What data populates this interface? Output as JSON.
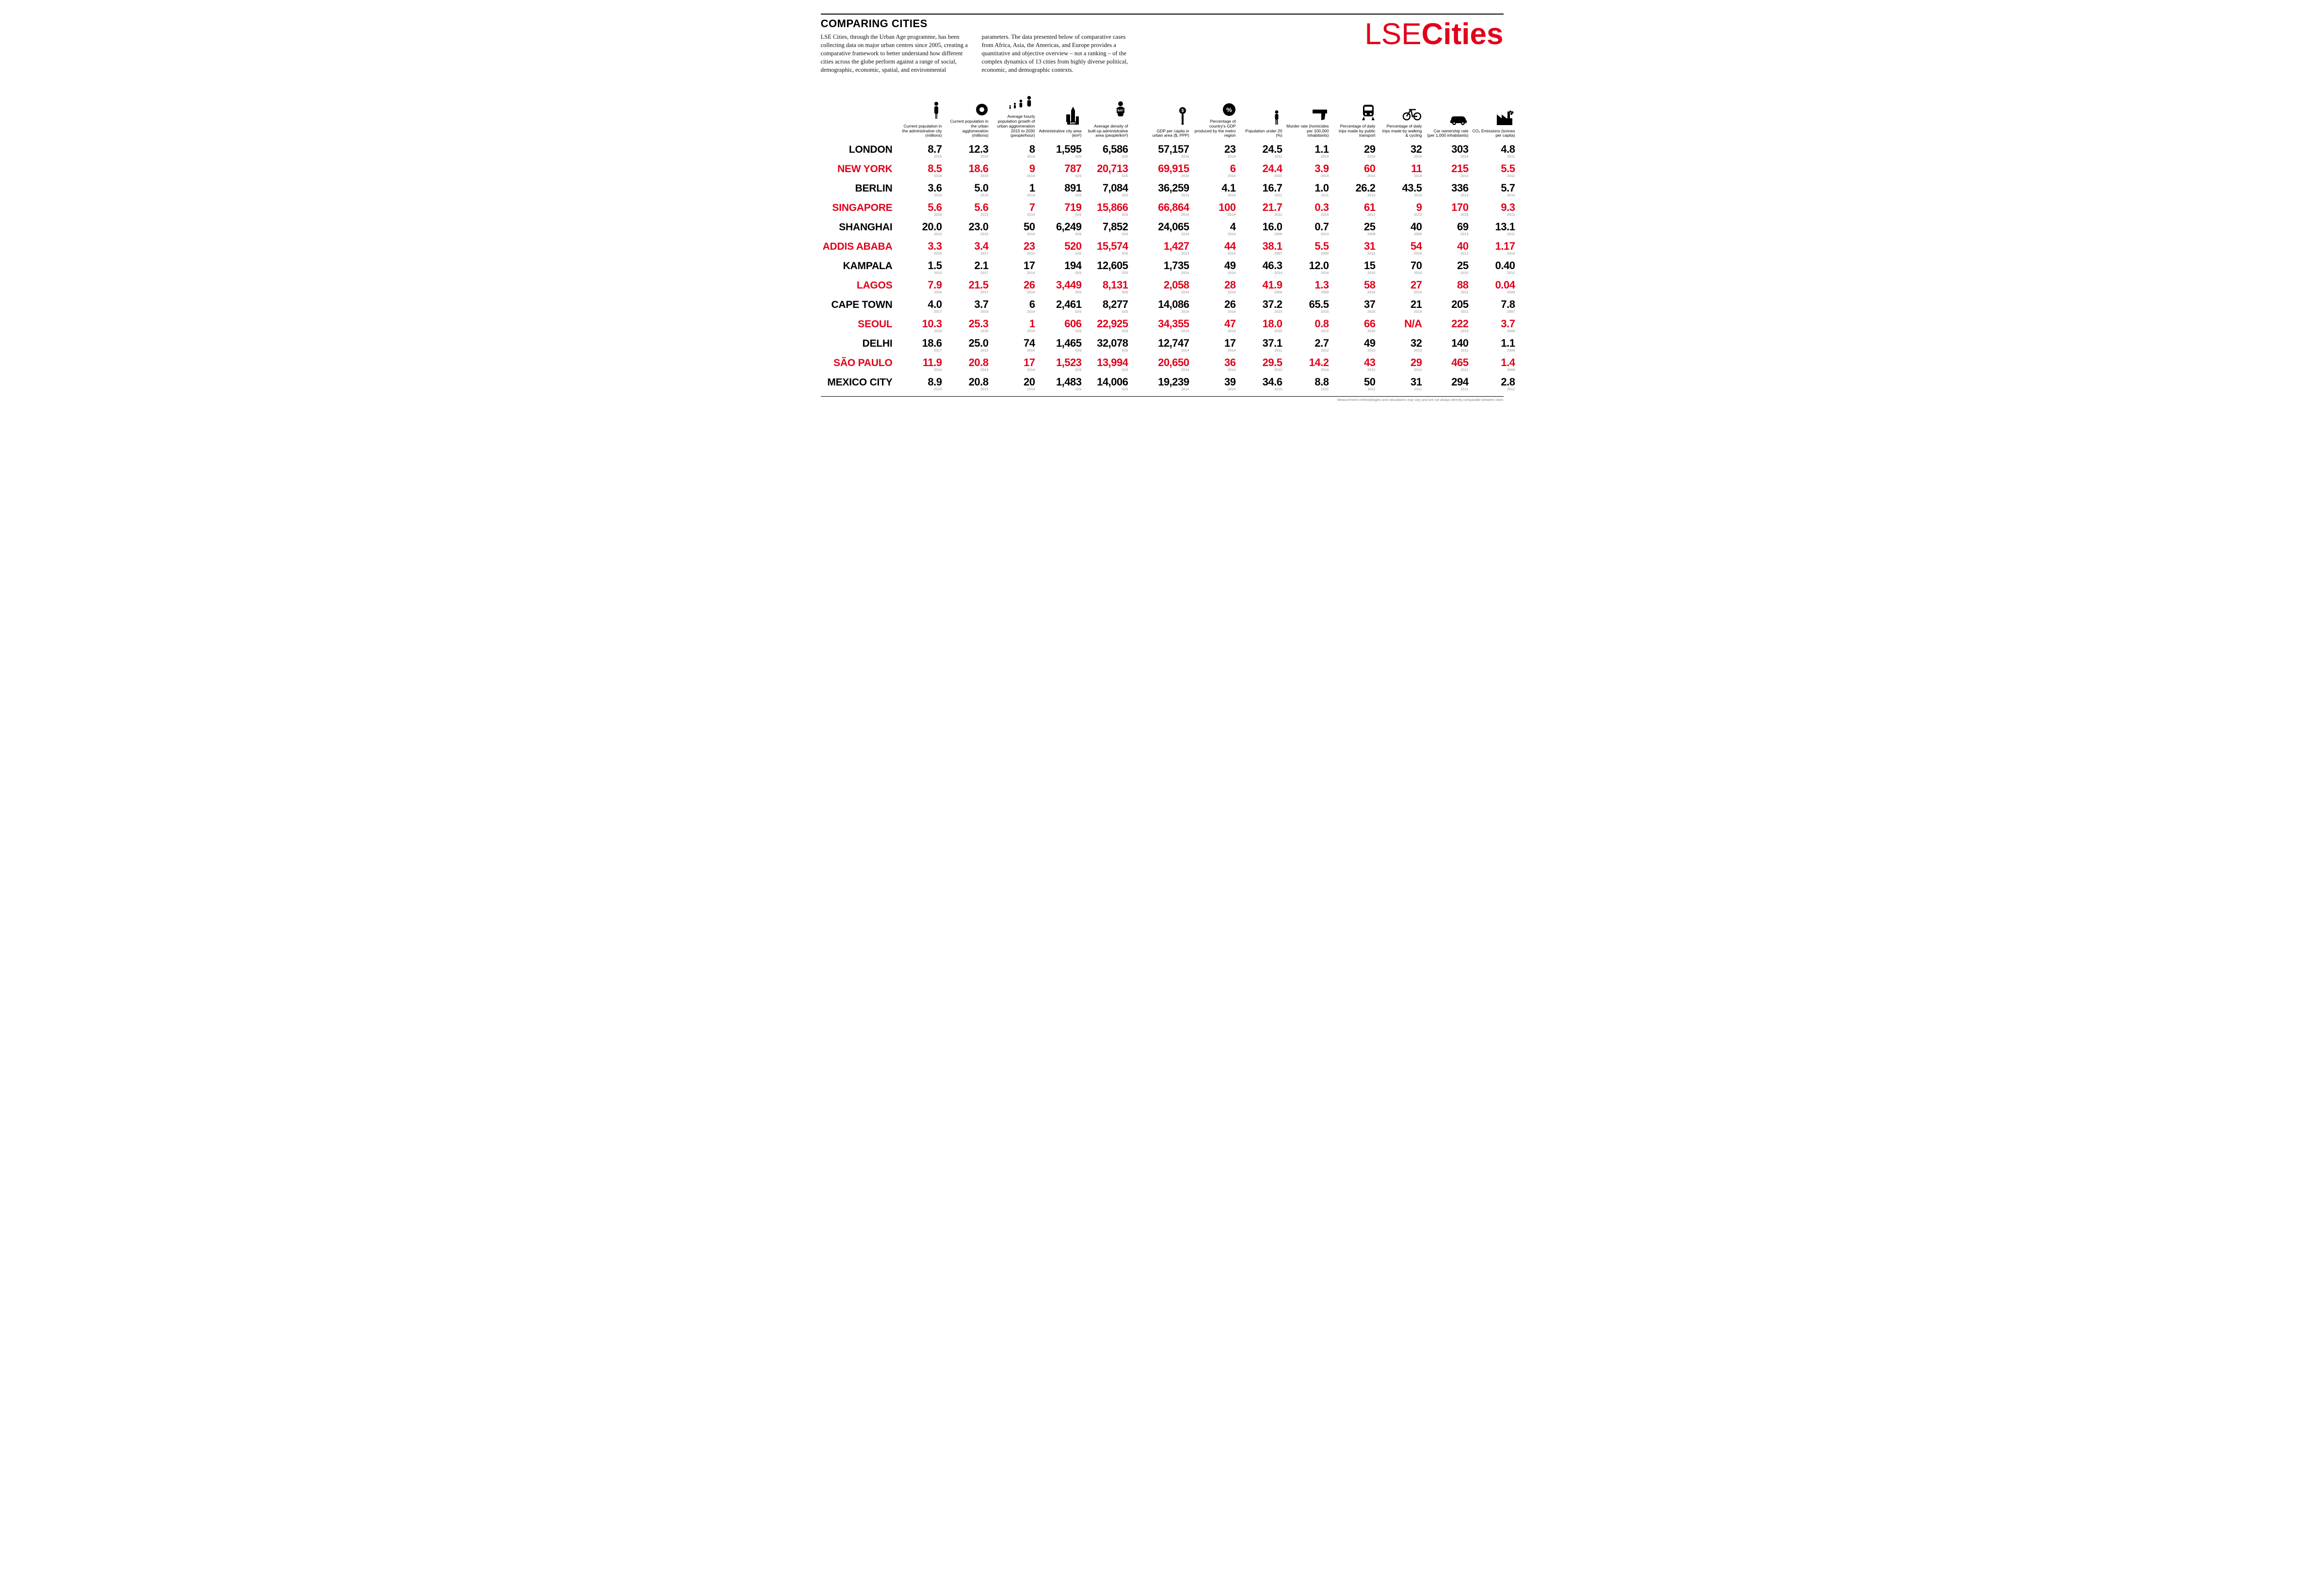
{
  "title": "COMPARING CITIES",
  "intro_col1": "LSE Cities, through the Urban Age programme, has been collecting data on major urban centres since 2005, creating a comparative framework to better understand how different cities across the globe perform against a range of social, demographic, economic, spatial, and environmental",
  "intro_col2": "parameters. The data presented below of comparative cases from Africa, Asia, the Americas, and Europe provides a quantitative and objective overview – not a ranking – of the complex dynamics of 13 cities from highly diverse political, economic, and demographic contexts.",
  "logo_light": "LSE",
  "logo_bold": "Cities",
  "footer_note": "Measurement methodologies and calculations may vary and are not always directly comparable between cities",
  "colors": {
    "red": "#e2001a",
    "black": "#000000",
    "muted": "#888888",
    "bg": "#ffffff"
  },
  "columns": [
    {
      "key": "pop_admin",
      "label": "Current population in the administrative city (millions)",
      "icon": "person"
    },
    {
      "key": "pop_urban",
      "label": "Current population in the urban agglomeration (millions)",
      "icon": "donut"
    },
    {
      "key": "growth",
      "label": "Average hourly population growth of urban agglomeration 2015 to 2030 (people/hour)",
      "icon": "growth"
    },
    {
      "key": "area",
      "label": "Administrative city area (km²)",
      "icon": "city"
    },
    {
      "key": "density",
      "label": "Average density of built-up administrative area (people/km²)",
      "icon": "density"
    },
    {
      "key": "gdp",
      "label": "GDP per capita in urban area ($, PPP)",
      "icon": "dollar"
    },
    {
      "key": "gdp_pct",
      "label": "Percentage of country's GDP produced by the metro region",
      "icon": "percent"
    },
    {
      "key": "under20",
      "label": "Population under 20 (%)",
      "icon": "child"
    },
    {
      "key": "murder",
      "label": "Murder rate (homicides per 100,000 inhabitants)",
      "icon": "gun"
    },
    {
      "key": "transit",
      "label": "Percentage of daily trips made by public transport",
      "icon": "train"
    },
    {
      "key": "walkbike",
      "label": "Percentage of daily trips made by walking & cycling",
      "icon": "bike"
    },
    {
      "key": "car",
      "label": "Car ownership rate (per 1,000 inhabitants)",
      "icon": "car"
    },
    {
      "key": "co2",
      "label": "CO₂ Emissions (tonnes per capita)",
      "icon": "factory"
    }
  ],
  "rows": [
    {
      "city": "LONDON",
      "red": false,
      "cells": [
        {
          "v": "8.7",
          "y": "2016"
        },
        {
          "v": "12.3",
          "y": "2015"
        },
        {
          "v": "8",
          "y": "2014"
        },
        {
          "v": "1,595",
          "y": "GIS"
        },
        {
          "v": "6,586",
          "y": "GIS"
        },
        {
          "v": "57,157",
          "y": "2014"
        },
        {
          "v": "23",
          "y": "2014"
        },
        {
          "v": "24.5",
          "y": "2011"
        },
        {
          "v": "1.1",
          "y": "2014"
        },
        {
          "v": "29",
          "y": "2014"
        },
        {
          "v": "32",
          "y": "2014"
        },
        {
          "v": "303",
          "y": "2014"
        },
        {
          "v": "4.8",
          "y": "2011"
        }
      ]
    },
    {
      "city": "NEW YORK",
      "red": true,
      "cells": [
        {
          "v": "8.5",
          "y": "2016"
        },
        {
          "v": "18.6",
          "y": "2015"
        },
        {
          "v": "9",
          "y": "2014"
        },
        {
          "v": "787",
          "y": "GIS"
        },
        {
          "v": "20,713",
          "y": "GIS"
        },
        {
          "v": "69,915",
          "y": "2014"
        },
        {
          "v": "6",
          "y": "2014"
        },
        {
          "v": "24.4",
          "y": "2010"
        },
        {
          "v": "3.9",
          "y": "2014"
        },
        {
          "v": "60",
          "y": "2014"
        },
        {
          "v": "11",
          "y": "2014"
        },
        {
          "v": "215",
          "y": "2013"
        },
        {
          "v": "5.5",
          "y": "2011"
        }
      ]
    },
    {
      "city": "BERLIN",
      "red": false,
      "cells": [
        {
          "v": "3.6",
          "y": "2015"
        },
        {
          "v": "5.0",
          "y": "2015"
        },
        {
          "v": "1",
          "y": "2014"
        },
        {
          "v": "891",
          "y": "GIS"
        },
        {
          "v": "7,084",
          "y": "GIS"
        },
        {
          "v": "36,259",
          "y": "2014"
        },
        {
          "v": "4.1",
          "y": "2014"
        },
        {
          "v": "16.7",
          "y": "2011"
        },
        {
          "v": "1.0",
          "y": "2011"
        },
        {
          "v": "26.2",
          "y": "2013"
        },
        {
          "v": "43.5",
          "y": "2013"
        },
        {
          "v": "336",
          "y": "2013"
        },
        {
          "v": "5.7",
          "y": "2010"
        }
      ]
    },
    {
      "city": "SINGAPORE",
      "red": true,
      "cells": [
        {
          "v": "5.6",
          "y": "2016"
        },
        {
          "v": "5.6",
          "y": "2015"
        },
        {
          "v": "7",
          "y": "2014"
        },
        {
          "v": "719",
          "y": "GIS"
        },
        {
          "v": "15,866",
          "y": "GIS"
        },
        {
          "v": "66,864",
          "y": "2014"
        },
        {
          "v": "100",
          "y": "2014"
        },
        {
          "v": "21.7",
          "y": "2012"
        },
        {
          "v": "0.3",
          "y": "2014"
        },
        {
          "v": "61",
          "y": "2012"
        },
        {
          "v": "9",
          "y": "2012"
        },
        {
          "v": "170",
          "y": "2015"
        },
        {
          "v": "9.3",
          "y": "2013"
        }
      ]
    },
    {
      "city": "SHANGHAI",
      "red": false,
      "cells": [
        {
          "v": "20.0",
          "y": "2013"
        },
        {
          "v": "23.0",
          "y": "2015"
        },
        {
          "v": "50",
          "y": "2014"
        },
        {
          "v": "6,249",
          "y": "GIS"
        },
        {
          "v": "7,852",
          "y": "GIS"
        },
        {
          "v": "24,065",
          "y": "2014"
        },
        {
          "v": "4",
          "y": "2014"
        },
        {
          "v": "16.0",
          "y": "2005"
        },
        {
          "v": "0.7",
          "y": "2013"
        },
        {
          "v": "25",
          "y": "2009"
        },
        {
          "v": "40",
          "y": "2009"
        },
        {
          "v": "69",
          "y": "2013"
        },
        {
          "v": "13.1",
          "y": "2011"
        }
      ]
    },
    {
      "city": "ADDIS ABABA",
      "red": true,
      "cells": [
        {
          "v": "3.3",
          "y": "2016"
        },
        {
          "v": "3.4",
          "y": "2017"
        },
        {
          "v": "23",
          "y": "2014"
        },
        {
          "v": "520",
          "y": "GIS"
        },
        {
          "v": "15,574",
          "y": "GIS"
        },
        {
          "v": "1,427",
          "y": "2013"
        },
        {
          "v": "44",
          "y": "2014"
        },
        {
          "v": "38.1",
          "y": "2007"
        },
        {
          "v": "5.5",
          "y": "2000"
        },
        {
          "v": "31",
          "y": "2010"
        },
        {
          "v": "54",
          "y": "2010"
        },
        {
          "v": "40",
          "y": "2012"
        },
        {
          "v": "1.17",
          "y": "2010"
        }
      ]
    },
    {
      "city": "KAMPALA",
      "red": false,
      "cells": [
        {
          "v": "1.5",
          "y": "2015"
        },
        {
          "v": "2.1",
          "y": "2017"
        },
        {
          "v": "17",
          "y": "2014"
        },
        {
          "v": "194",
          "y": "GIS"
        },
        {
          "v": "12,605",
          "y": "GIS"
        },
        {
          "v": "1,735",
          "y": "2014"
        },
        {
          "v": "49",
          "y": "2014"
        },
        {
          "v": "46.3",
          "y": "2014"
        },
        {
          "v": "12.0",
          "y": "2014"
        },
        {
          "v": "15",
          "y": "2010"
        },
        {
          "v": "70",
          "y": "2010"
        },
        {
          "v": "25",
          "y": "2010"
        },
        {
          "v": "0.40",
          "y": "2012"
        }
      ]
    },
    {
      "city": "LAGOS",
      "red": true,
      "cells": [
        {
          "v": "7.9",
          "y": "2016"
        },
        {
          "v": "21.5",
          "y": "2017"
        },
        {
          "v": "26",
          "y": "2014"
        },
        {
          "v": "3,449",
          "y": "GIS"
        },
        {
          "v": "8,131",
          "y": "GIS"
        },
        {
          "v": "2,058",
          "y": "2014"
        },
        {
          "v": "28",
          "y": "2014"
        },
        {
          "v": "41.9",
          "y": "2006"
        },
        {
          "v": "1.3",
          "y": "2009"
        },
        {
          "v": "58",
          "y": "2014"
        },
        {
          "v": "27",
          "y": "2014"
        },
        {
          "v": "88",
          "y": "2011"
        },
        {
          "v": "0.04",
          "y": "2009"
        }
      ]
    },
    {
      "city": "CAPE TOWN",
      "red": false,
      "cells": [
        {
          "v": "4.0",
          "y": "2017"
        },
        {
          "v": "3.7",
          "y": "2015"
        },
        {
          "v": "6",
          "y": "2014"
        },
        {
          "v": "2,461",
          "y": "GIS"
        },
        {
          "v": "8,277",
          "y": "GIS"
        },
        {
          "v": "14,086",
          "y": "2014"
        },
        {
          "v": "26",
          "y": "2014"
        },
        {
          "v": "37.2",
          "y": "2015"
        },
        {
          "v": "65.5",
          "y": "2015"
        },
        {
          "v": "37",
          "y": "2015"
        },
        {
          "v": "21",
          "y": "2015"
        },
        {
          "v": "205",
          "y": "2011"
        },
        {
          "v": "7.8",
          "y": "2007"
        }
      ]
    },
    {
      "city": "SEOUL",
      "red": true,
      "cells": [
        {
          "v": "10.3",
          "y": "2016"
        },
        {
          "v": "25.3",
          "y": "2015"
        },
        {
          "v": "1",
          "y": "2014"
        },
        {
          "v": "606",
          "y": "GIS"
        },
        {
          "v": "22,925",
          "y": "GIS"
        },
        {
          "v": "34,355",
          "y": "2014"
        },
        {
          "v": "47",
          "y": "2014"
        },
        {
          "v": "18.0",
          "y": "2015"
        },
        {
          "v": "0.8",
          "y": "2012"
        },
        {
          "v": "66",
          "y": "2016"
        },
        {
          "v": "N/A",
          "y": ""
        },
        {
          "v": "222",
          "y": "2013"
        },
        {
          "v": "3.7",
          "y": "2008"
        }
      ]
    },
    {
      "city": "DELHI",
      "red": false,
      "cells": [
        {
          "v": "18.6",
          "y": "2017"
        },
        {
          "v": "25.0",
          "y": "2015"
        },
        {
          "v": "74",
          "y": "2014"
        },
        {
          "v": "1,465",
          "y": "GIS"
        },
        {
          "v": "32,078",
          "y": "GIS"
        },
        {
          "v": "12,747",
          "y": "2014"
        },
        {
          "v": "17",
          "y": "2014"
        },
        {
          "v": "37.1",
          "y": "2011"
        },
        {
          "v": "2.7",
          "y": "2012"
        },
        {
          "v": "49",
          "y": "2013"
        },
        {
          "v": "32",
          "y": "2013"
        },
        {
          "v": "140",
          "y": "2011"
        },
        {
          "v": "1.1",
          "y": "2008"
        }
      ]
    },
    {
      "city": "SÃO PAULO",
      "red": true,
      "cells": [
        {
          "v": "11.9",
          "y": "2014"
        },
        {
          "v": "20.8",
          "y": "2014"
        },
        {
          "v": "17",
          "y": "2014"
        },
        {
          "v": "1,523",
          "y": "GIS"
        },
        {
          "v": "13,994",
          "y": "GIS"
        },
        {
          "v": "20,650",
          "y": "2014"
        },
        {
          "v": "36",
          "y": "2014"
        },
        {
          "v": "29.5",
          "y": "2010"
        },
        {
          "v": "14.2",
          "y": "2014"
        },
        {
          "v": "43",
          "y": "2012"
        },
        {
          "v": "29",
          "y": "2012"
        },
        {
          "v": "465",
          "y": "2011"
        },
        {
          "v": "1.4",
          "y": "2009"
        }
      ]
    },
    {
      "city": "MEXICO CITY",
      "red": false,
      "cells": [
        {
          "v": "8.9",
          "y": "2010"
        },
        {
          "v": "20.8",
          "y": "2015"
        },
        {
          "v": "20",
          "y": "2014"
        },
        {
          "v": "1,483",
          "y": "GIS"
        },
        {
          "v": "14,006",
          "y": "GIS"
        },
        {
          "v": "19,239",
          "y": "2014"
        },
        {
          "v": "39",
          "y": "2014"
        },
        {
          "v": "34.6",
          "y": "2010"
        },
        {
          "v": "8.8",
          "y": "2011"
        },
        {
          "v": "50",
          "y": "2011"
        },
        {
          "v": "31",
          "y": "2011"
        },
        {
          "v": "294",
          "y": "2011"
        },
        {
          "v": "2.8",
          "y": "2012"
        }
      ]
    }
  ]
}
